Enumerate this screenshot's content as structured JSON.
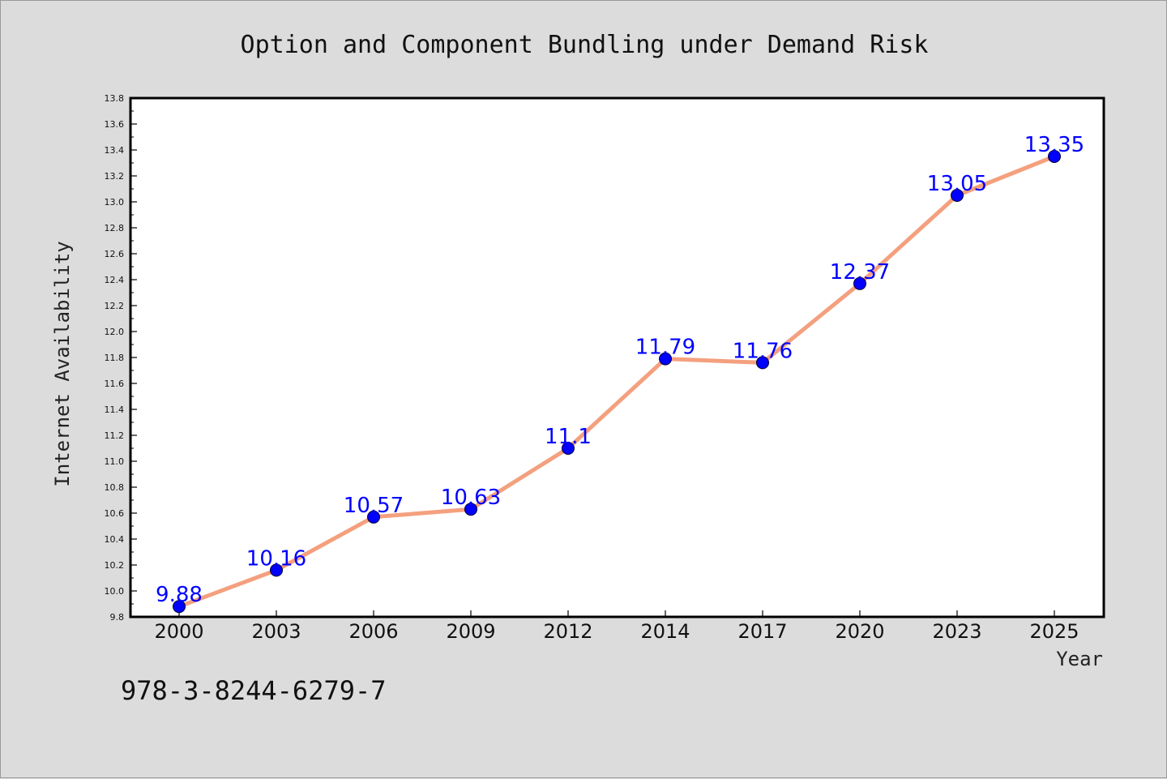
{
  "isbn": "978-3-8244-6279-7",
  "colors": {
    "line": "#f4a07e",
    "marker": "#0000ff",
    "label": "#0000ff",
    "background": "#dcdcdc",
    "plot_bg": "#ffffff"
  },
  "chart_data": {
    "type": "line",
    "title": "Option and Component Bundling under Demand Risk",
    "xlabel": "Year",
    "ylabel": "Internet Availability",
    "categories": [
      "2000",
      "2003",
      "2006",
      "2009",
      "2012",
      "2014",
      "2017",
      "2020",
      "2023",
      "2025"
    ],
    "series": [
      {
        "values": [
          9.88,
          10.16,
          10.57,
          10.63,
          11.1,
          11.79,
          11.76,
          12.37,
          13.05,
          13.35
        ],
        "labels": [
          "9.88",
          "10.16",
          "10.57",
          "10.63",
          "11.1",
          "11.79",
          "11.76",
          "12.37",
          "13.05",
          "13.35"
        ]
      }
    ],
    "ylim": [
      9.8,
      13.8
    ],
    "yticks": [
      "9.8",
      "10.0",
      "10.2",
      "10.4",
      "10.6",
      "10.8",
      "11.0",
      "11.2",
      "11.4",
      "11.6",
      "11.8",
      "12.0",
      "12.2",
      "12.4",
      "12.6",
      "12.8",
      "13.0",
      "13.2",
      "13.4",
      "13.6",
      "13.8"
    ],
    "grid": false,
    "legend": "none"
  }
}
